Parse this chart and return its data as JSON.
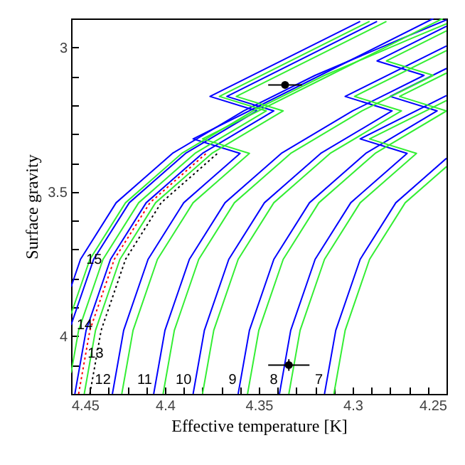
{
  "chart_data": {
    "type": "line",
    "xlabel": "Effective temperature [K]",
    "ylabel": "Surface gravity",
    "xlim": [
      4.45,
      4.25
    ],
    "ylim": [
      4.2,
      2.9
    ],
    "xticks": [
      4.45,
      {
        "value": 4.44,
        "label": null
      },
      {
        "value": 4.43,
        "label": null
      },
      {
        "value": 4.42,
        "label": null
      },
      {
        "value": 4.41,
        "label": null
      },
      4.4,
      {
        "value": 4.39,
        "label": null
      },
      {
        "value": 4.38,
        "label": null
      },
      {
        "value": 4.37,
        "label": null
      },
      {
        "value": 4.36,
        "label": null
      },
      4.35,
      {
        "value": 4.34,
        "label": null
      },
      {
        "value": 4.33,
        "label": null
      },
      {
        "value": 4.32,
        "label": null
      },
      {
        "value": 4.31,
        "label": null
      },
      4.3,
      {
        "value": 4.29,
        "label": null
      },
      {
        "value": 4.28,
        "label": null
      },
      {
        "value": 4.27,
        "label": null
      },
      {
        "value": 4.26,
        "label": null
      },
      4.25
    ],
    "yticks": [
      3,
      {
        "value": 3.1,
        "label": null
      },
      {
        "value": 3.2,
        "label": null
      },
      {
        "value": 3.3,
        "label": null
      },
      {
        "value": 3.4,
        "label": null
      },
      3.5,
      {
        "value": 3.6,
        "label": null
      },
      {
        "value": 3.7,
        "label": null
      },
      {
        "value": 3.8,
        "label": null
      },
      {
        "value": 3.9,
        "label": null
      },
      4,
      {
        "value": 4.1,
        "label": null
      }
    ],
    "series": [
      {
        "color": "#0000ff",
        "x": [
          4.315,
          4.309,
          4.296,
          4.277,
          4.25
        ],
        "values": [
          4.2,
          3.98,
          3.734,
          3.538,
          3.384
        ]
      },
      {
        "color": "#0000ff",
        "x": [
          4.339,
          4.333,
          4.32,
          4.301,
          4.271,
          4.296,
          4.25
        ],
        "values": [
          4.2,
          3.98,
          3.734,
          3.538,
          3.367,
          3.317,
          3.167
        ]
      },
      {
        "color": "#0000ff",
        "x": [
          4.361,
          4.355,
          4.342,
          4.323,
          4.293,
          4.255,
          4.28,
          4.25
        ],
        "values": [
          4.2,
          3.98,
          3.734,
          3.538,
          3.367,
          3.22,
          3.17,
          3.073
        ]
      },
      {
        "color": "#0000ff",
        "x": [
          4.385,
          4.379,
          4.366,
          4.347,
          4.317,
          4.279,
          4.304,
          4.25
        ],
        "values": [
          4.2,
          3.98,
          3.734,
          3.538,
          3.367,
          3.22,
          3.17,
          2.995
        ]
      },
      {
        "color": "#0000ff",
        "x": [
          4.406,
          4.4,
          4.387,
          4.368,
          4.338,
          4.3,
          4.262,
          4.287,
          4.25
        ],
        "values": [
          4.2,
          3.98,
          3.734,
          3.538,
          3.367,
          3.22,
          3.097,
          3.047,
          2.927
        ]
      },
      {
        "color": "#0000ff",
        "x": [
          4.428,
          4.422,
          4.409,
          4.39,
          4.36,
          4.385,
          4.305,
          4.257
        ],
        "values": [
          4.2,
          3.98,
          3.734,
          3.538,
          3.367,
          3.317,
          3.057,
          2.9
        ]
      },
      {
        "color": "#0000ff",
        "x": [
          4.448,
          4.442,
          4.429,
          4.41,
          4.38,
          4.342,
          4.367,
          4.287
        ],
        "values": [
          4.2,
          3.98,
          3.734,
          3.538,
          3.367,
          3.22,
          3.17,
          2.91
        ]
      },
      {
        "color": "#0000ff",
        "x": [
          4.45,
          4.438,
          4.419,
          4.389,
          4.351,
          4.376,
          4.296
        ],
        "values": [
          3.961,
          3.734,
          3.538,
          3.367,
          3.22,
          3.17,
          2.91
        ]
      },
      {
        "color": "#0000ff",
        "x": [
          4.45,
          4.445,
          4.426,
          4.396,
          4.358,
          4.32,
          4.274,
          4.25
        ],
        "values": [
          3.829,
          3.734,
          3.538,
          3.367,
          3.22,
          3.097,
          2.97,
          2.905
        ]
      },
      {
        "color": "#33ee33",
        "x": [
          4.31,
          4.304,
          4.291,
          4.272,
          4.25
        ],
        "values": [
          4.2,
          3.98,
          3.734,
          3.538,
          3.413
        ]
      },
      {
        "color": "#33ee33",
        "x": [
          4.334,
          4.328,
          4.315,
          4.296,
          4.266,
          4.291,
          4.25
        ],
        "values": [
          4.2,
          3.98,
          3.734,
          3.538,
          3.367,
          3.317,
          3.184
        ]
      },
      {
        "color": "#33ee33",
        "x": [
          4.356,
          4.35,
          4.337,
          4.318,
          4.288,
          4.25,
          4.275,
          4.25
        ],
        "values": [
          4.2,
          3.98,
          3.734,
          3.538,
          3.367,
          3.22,
          3.17,
          3.089
        ]
      },
      {
        "color": "#33ee33",
        "x": [
          4.38,
          4.374,
          4.361,
          4.342,
          4.312,
          4.274,
          4.299,
          4.25
        ],
        "values": [
          4.2,
          3.98,
          3.734,
          3.538,
          3.367,
          3.22,
          3.17,
          3.011
        ]
      },
      {
        "color": "#33ee33",
        "x": [
          4.401,
          4.395,
          4.382,
          4.363,
          4.333,
          4.295,
          4.257,
          4.282,
          4.25
        ],
        "values": [
          4.2,
          3.98,
          3.734,
          3.538,
          3.367,
          3.22,
          3.097,
          3.047,
          2.943
        ]
      },
      {
        "color": "#33ee33",
        "x": [
          4.423,
          4.417,
          4.404,
          4.385,
          4.355,
          4.38,
          4.3,
          4.252
        ],
        "values": [
          4.2,
          3.98,
          3.734,
          3.538,
          3.367,
          3.317,
          3.057,
          2.9
        ]
      },
      {
        "color": "#33ee33",
        "x": [
          4.443,
          4.437,
          4.424,
          4.405,
          4.375,
          4.337,
          4.362,
          4.282
        ],
        "values": [
          4.2,
          3.98,
          3.734,
          3.538,
          3.367,
          3.22,
          3.17,
          2.91
        ]
      },
      {
        "color": "#33ee33",
        "x": [
          4.45,
          4.446,
          4.433,
          4.414,
          4.384,
          4.346,
          4.371,
          4.291
        ],
        "values": [
          4.127,
          3.98,
          3.734,
          3.538,
          3.367,
          3.22,
          3.17,
          2.91
        ]
      },
      {
        "color": "#33ee33",
        "x": [
          4.45,
          4.44,
          4.421,
          4.391,
          4.353,
          4.315,
          4.269,
          4.25
        ],
        "values": [
          3.923,
          3.734,
          3.538,
          3.367,
          3.22,
          3.097,
          2.97,
          2.918
        ]
      },
      {
        "color": "#ff0000",
        "line_style": "dotted",
        "x": [
          4.446,
          4.44,
          4.427,
          4.408,
          4.378
        ],
        "values": [
          4.2,
          3.98,
          3.734,
          3.538,
          3.367
        ]
      },
      {
        "color": "#000000",
        "line_style": "dotted",
        "x": [
          4.44,
          4.434,
          4.421,
          4.402,
          4.372
        ],
        "values": [
          4.2,
          3.98,
          3.734,
          3.538,
          3.367
        ]
      },
      {
        "type": "scatter",
        "color": "#000000",
        "marker": "circle",
        "x": [
          4.336,
          4.334
        ],
        "values": [
          3.13,
          4.1
        ],
        "xerrors": [
          0.009,
          0.011
        ],
        "errors": [
          null,
          0.02
        ]
      }
    ],
    "annotations": [
      {
        "text": "15",
        "x": 4.445,
        "y": 3.734
      },
      {
        "text": "14",
        "x": 4.45,
        "y": 3.961
      },
      {
        "text": "13",
        "x": 4.4442,
        "y": 4.06
      },
      {
        "text": "12",
        "x": 4.4266,
        "y": 4.15
      },
      {
        "text": "11",
        "x": 4.4046,
        "y": 4.15
      },
      {
        "text": "10",
        "x": 4.3836,
        "y": 4.15
      },
      {
        "text": "9",
        "x": 4.3596,
        "y": 4.15
      },
      {
        "text": "8",
        "x": 4.3376,
        "y": 4.15
      },
      {
        "text": "7",
        "x": 4.3136,
        "y": 4.15
      }
    ]
  }
}
